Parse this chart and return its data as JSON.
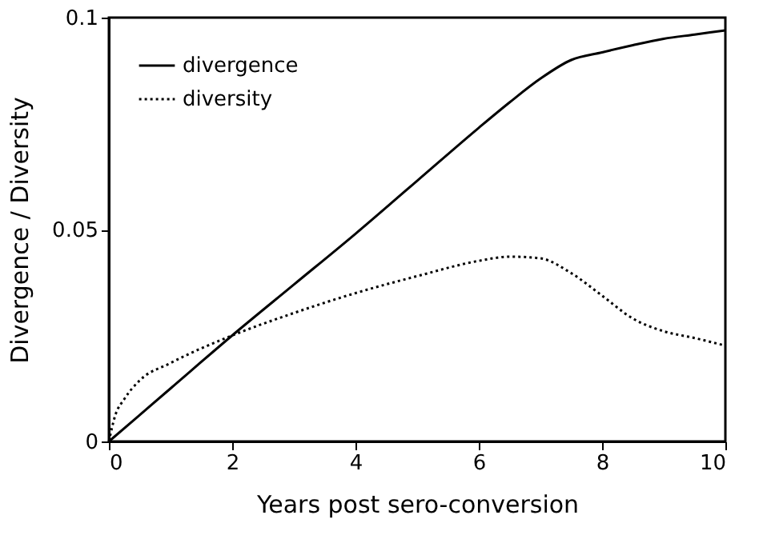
{
  "chart_data": {
    "type": "line",
    "xlabel": "Years post sero-conversion",
    "ylabel": "Divergence / Diversity",
    "xlim": [
      0,
      10
    ],
    "ylim": [
      0,
      0.1
    ],
    "xticks": [
      0,
      2,
      4,
      6,
      8,
      10
    ],
    "yticks": [
      0,
      0.05,
      0.1
    ],
    "grid": false,
    "legend": "top left",
    "marker": "none",
    "series": [
      {
        "name": "divergence",
        "color": "#000000",
        "line_style": "solid",
        "x": [
          0,
          1,
          2,
          3,
          4,
          5,
          6,
          6.5,
          7,
          7.5,
          8,
          8.5,
          9,
          9.5,
          10
        ],
        "values": [
          0,
          0.0125,
          0.025,
          0.037,
          0.049,
          0.0615,
          0.074,
          0.08,
          0.0856,
          0.09,
          0.0918,
          0.0935,
          0.095,
          0.096,
          0.097
        ]
      },
      {
        "name": "diversity",
        "color": "#000000",
        "line_style": "dotted",
        "x": [
          0,
          0.1,
          0.25,
          0.5,
          1,
          2,
          3,
          4,
          5,
          6,
          6.5,
          7,
          7.5,
          8,
          8.5,
          9,
          9.5,
          10
        ],
        "values": [
          0,
          0.006,
          0.01,
          0.0144,
          0.0185,
          0.025,
          0.0303,
          0.035,
          0.039,
          0.0426,
          0.0436,
          0.0432,
          0.0397,
          0.0344,
          0.029,
          0.026,
          0.0244,
          0.0226
        ]
      }
    ]
  }
}
